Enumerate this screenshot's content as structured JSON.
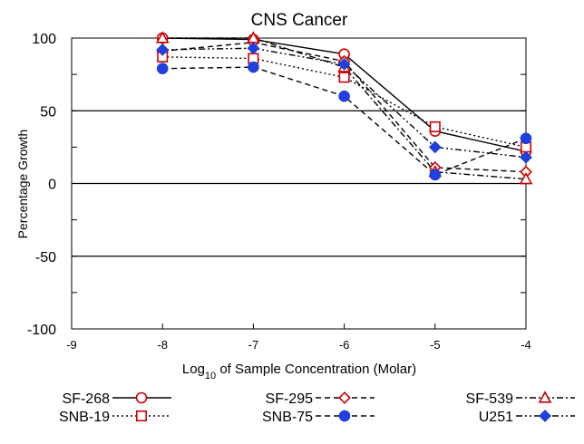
{
  "chart_data": {
    "type": "line",
    "title": "CNS Cancer",
    "ylabel": "Percentage Growth",
    "xlabel_prefix": "Log",
    "xlabel_sub": "10",
    "xlabel_suffix": " of Sample Concentration (Molar)",
    "xlim": [
      -9,
      -4
    ],
    "ylim": [
      -100,
      100
    ],
    "x_ticks": [
      "-9",
      "-8",
      "-7",
      "-6",
      "-5",
      "-4"
    ],
    "y_ticks": [
      "-100",
      "-50",
      "0",
      "50",
      "100"
    ],
    "reference_lines": [
      50,
      0,
      -50
    ],
    "grid": false,
    "legend_position": "bottom",
    "x": [
      -8,
      -7,
      -6,
      -5,
      -4
    ],
    "series": [
      {
        "name": "SF-268",
        "values": [
          100,
          99,
          89,
          36,
          22
        ],
        "color": "#cc0000",
        "marker": "circle-open",
        "dash": "solid",
        "line_color": "#000000"
      },
      {
        "name": "SF-295",
        "values": [
          91,
          97,
          84,
          11,
          8
        ],
        "color": "#cc0000",
        "marker": "diamond-open",
        "dash": "dashed",
        "line_color": "#000000"
      },
      {
        "name": "SF-539",
        "values": [
          100,
          100,
          80,
          8,
          3
        ],
        "color": "#cc0000",
        "marker": "triangle-open",
        "dash": "dash-dot",
        "line_color": "#000000"
      },
      {
        "name": "SNB-19",
        "values": [
          87,
          86,
          73,
          39,
          25
        ],
        "color": "#cc0000",
        "marker": "square-open",
        "dash": "dotted",
        "line_color": "#000000"
      },
      {
        "name": "SNB-75",
        "values": [
          79,
          80,
          60,
          6,
          31
        ],
        "color": "#1f3fdf",
        "marker": "circle-filled",
        "dash": "dashed",
        "line_color": "#000000"
      },
      {
        "name": "U251",
        "values": [
          92,
          93,
          82,
          25,
          18
        ],
        "color": "#1f3fdf",
        "marker": "diamond-filled",
        "dash": "dash-dot-dot",
        "line_color": "#000000"
      }
    ]
  }
}
